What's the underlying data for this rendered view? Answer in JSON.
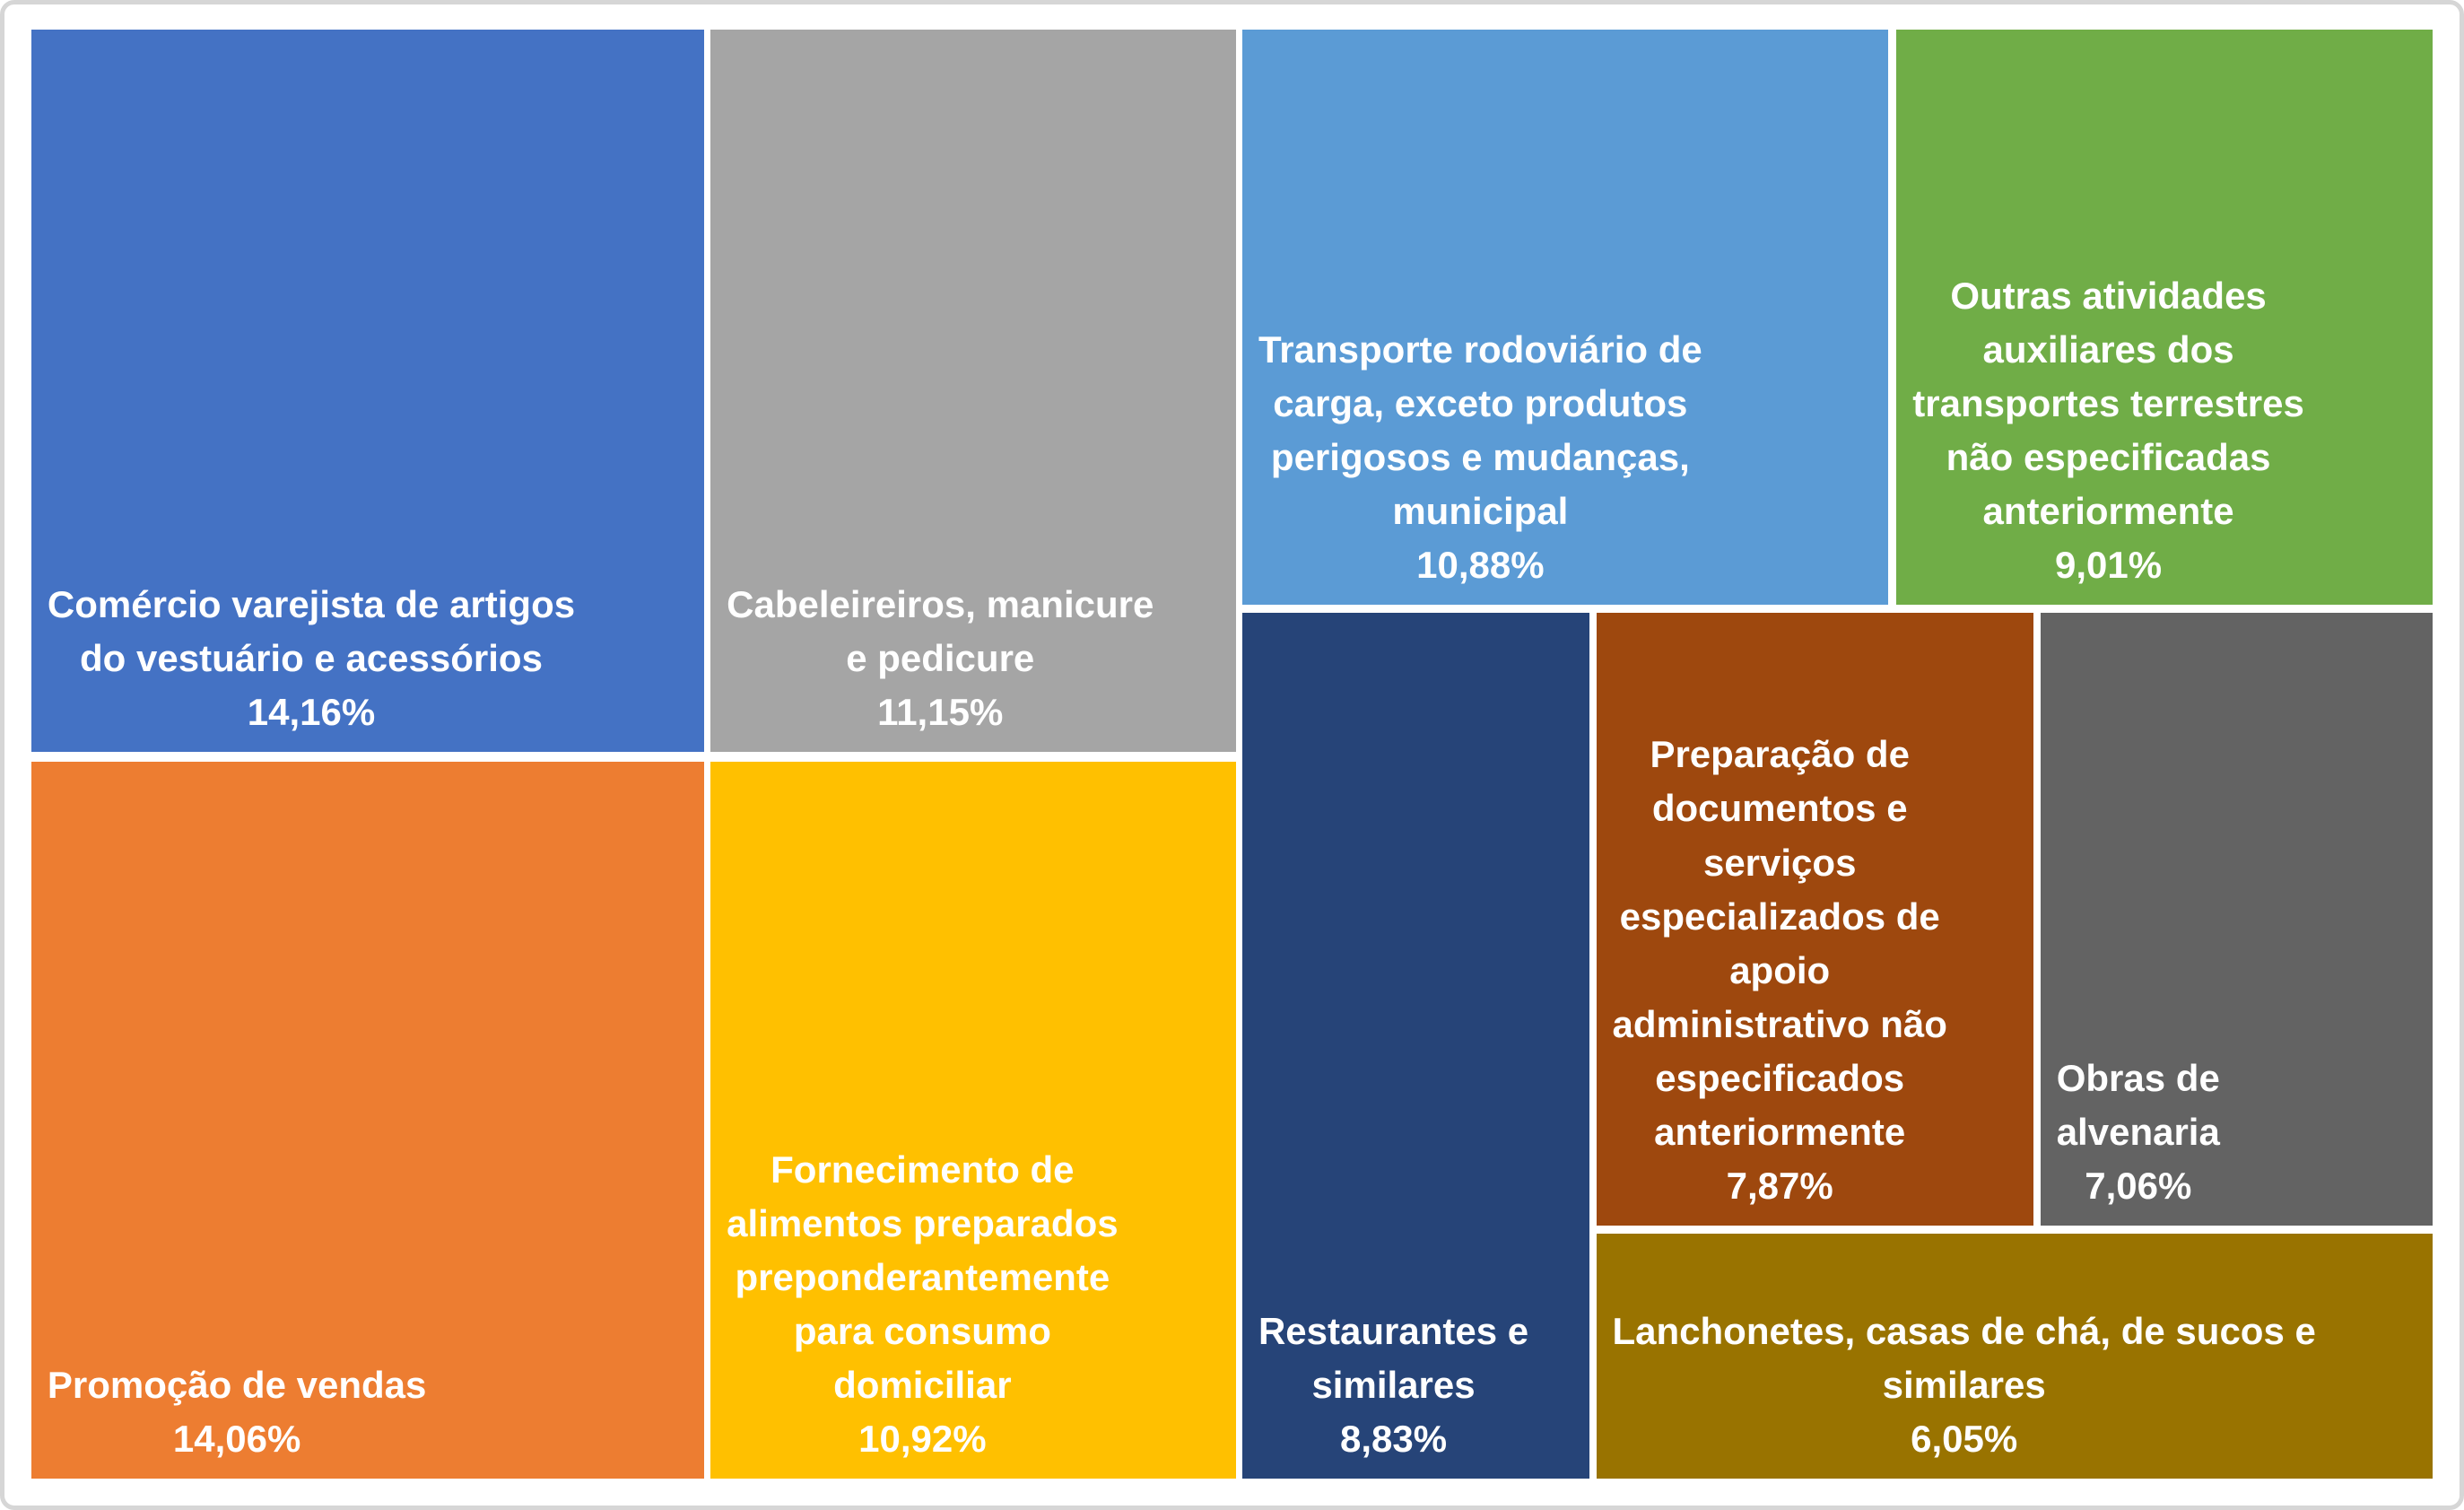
{
  "colors": {
    "background": "#FFFFFF",
    "frame_border": "#D6D6D6",
    "label_text": "#FFFFFF"
  },
  "chart_data": {
    "type": "treemap",
    "title": "",
    "value_unit": "%",
    "legend": "none",
    "items": [
      {
        "label": "Comércio varejista de artigos do vestuário e acessórios",
        "label_lines": [
          "Comércio varejista de artigos",
          "do vestuário e acessórios"
        ],
        "value": 14.16,
        "value_label": "14,16%",
        "color": "#4472C4"
      },
      {
        "label": "Promoção de vendas",
        "label_lines": [
          "Promoção de vendas"
        ],
        "value": 14.06,
        "value_label": "14,06%",
        "color": "#ED7D31"
      },
      {
        "label": "Cabeleireiros, manicure e pedicure",
        "label_lines": [
          "Cabeleireiros, manicure",
          "e pedicure"
        ],
        "value": 11.15,
        "value_label": "11,15%",
        "color": "#A5A5A5"
      },
      {
        "label": "Fornecimento de alimentos preparados preponderantemente para consumo domiciliar",
        "label_lines": [
          "Fornecimento de",
          "alimentos preparados",
          "preponderantemente",
          "para consumo",
          "domiciliar"
        ],
        "value": 10.92,
        "value_label": "10,92%",
        "color": "#FFC000"
      },
      {
        "label": "Transporte rodoviário de carga, exceto produtos perigosos e mudanças, municipal",
        "label_lines": [
          "Transporte rodoviário de",
          "carga, exceto produtos",
          "perigosos e mudanças,",
          "municipal"
        ],
        "value": 10.88,
        "value_label": "10,88%",
        "color": "#5B9BD5"
      },
      {
        "label": "Outras atividades auxiliares dos transportes terrestres não especificadas anteriormente",
        "label_lines": [
          "Outras atividades",
          "auxiliares dos",
          "transportes terrestres",
          "não especificadas",
          "anteriormente"
        ],
        "value": 9.01,
        "value_label": "9,01%",
        "color": "#70AD47"
      },
      {
        "label": "Restaurantes e similares",
        "label_lines": [
          "Restaurantes e",
          "similares"
        ],
        "value": 8.83,
        "value_label": "8,83%",
        "color": "#264478"
      },
      {
        "label": "Preparação de documentos e serviços especializados de apoio administrativo não especificados anteriormente",
        "label_lines": [
          "Preparação de",
          "documentos e",
          "serviços",
          "especializados de",
          "apoio",
          "administrativo não",
          "especificados",
          "anteriormente"
        ],
        "value": 7.87,
        "value_label": "7,87%",
        "color": "#9E480E"
      },
      {
        "label": "Obras de alvenaria",
        "label_lines": [
          "Obras de",
          "alvenaria"
        ],
        "value": 7.06,
        "value_label": "7,06%",
        "color": "#636363"
      },
      {
        "label": "Lanchonetes, casas de chá, de sucos e similares",
        "label_lines": [
          "Lanchonetes, casas de chá, de sucos e",
          "similares"
        ],
        "value": 6.05,
        "value_label": "6,05%",
        "color": "#997300"
      }
    ]
  }
}
